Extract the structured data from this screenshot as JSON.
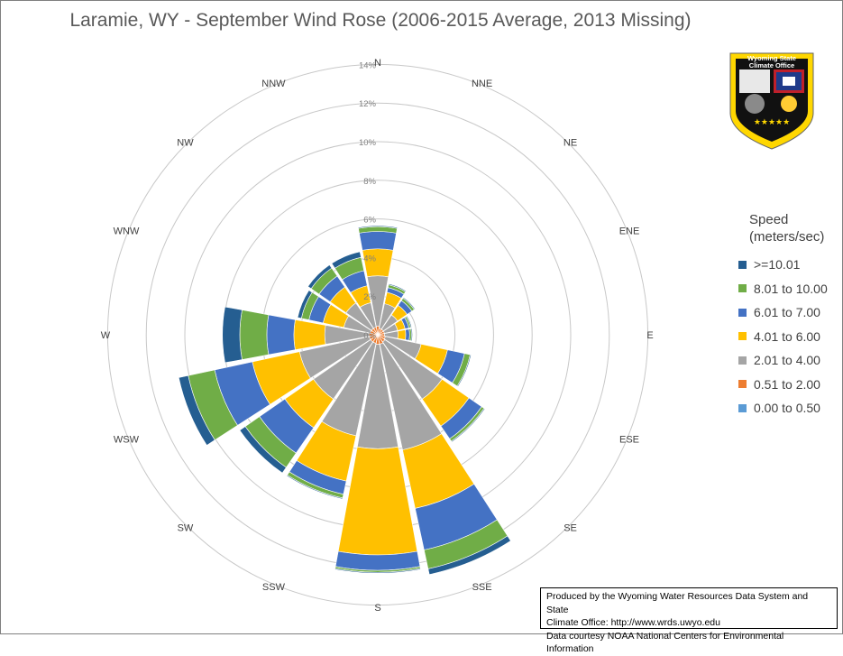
{
  "title": "Laramie, WY - September Wind Rose (2006-2015 Average, 2013 Missing)",
  "chart_data": {
    "type": "wind-rose",
    "title": "Laramie, WY - September Wind Rose (2006-2015 Average, 2013 Missing)",
    "directions": [
      "N",
      "NNE",
      "NE",
      "ENE",
      "E",
      "ESE",
      "SE",
      "SSE",
      "S",
      "SSW",
      "SW",
      "WSW",
      "W",
      "WNW",
      "NW",
      "NNW"
    ],
    "radial_ticks": [
      "0%",
      "2%",
      "4%",
      "6%",
      "8%",
      "10%",
      "12%",
      "14%"
    ],
    "rlim": [
      0,
      14
    ],
    "grid": true,
    "legend_position": "right",
    "legend_title": "Speed (meters/sec)",
    "series": [
      {
        "name": "0.00 to 0.50",
        "color": "#5b9bd5",
        "values": [
          0,
          0,
          0,
          0,
          0,
          0,
          0,
          0,
          0,
          0,
          0,
          0,
          0,
          0,
          0,
          0
        ]
      },
      {
        "name": "0.51 to 2.00",
        "color": "#ed7d31",
        "values": [
          0.45,
          0.35,
          0.35,
          0.35,
          0.35,
          0.4,
          0.45,
          0.5,
          0.5,
          0.45,
          0.45,
          0.45,
          0.45,
          0.4,
          0.4,
          0.4
        ]
      },
      {
        "name": "2.01 to 4.00",
        "color": "#a5a5a5",
        "values": [
          2.6,
          1.3,
          0.9,
          0.7,
          0.7,
          1.9,
          3.6,
          5.6,
          5.4,
          4.9,
          3.6,
          3.7,
          2.3,
          1.4,
          1.6,
          1.3
        ]
      },
      {
        "name": "4.01 to 6.00",
        "color": "#ffc000",
        "values": [
          1.4,
          0.6,
          0.6,
          0.4,
          0.4,
          1.4,
          1.7,
          3.1,
          5.5,
          2.4,
          1.8,
          2.5,
          1.6,
          1.1,
          1.0,
          0.9
        ]
      },
      {
        "name": "6.01 to 7.00",
        "color": "#4472c4",
        "values": [
          0.9,
          0.25,
          0.3,
          0.2,
          0.2,
          0.9,
          0.8,
          2.2,
          0.8,
          0.7,
          1.6,
          2.0,
          1.4,
          0.75,
          0.7,
          0.8
        ]
      },
      {
        "name": "8.01 to 10.00",
        "color": "#70ad47",
        "values": [
          0.25,
          0.15,
          0.15,
          0.1,
          0.1,
          0.3,
          0.15,
          1.0,
          0.1,
          0.2,
          0.9,
          1.4,
          1.4,
          0.4,
          0.5,
          0.7
        ]
      },
      {
        "name": ">=10.01",
        "color": "#255e91",
        "values": [
          0.05,
          0.05,
          0.05,
          0.05,
          0.05,
          0.05,
          0.05,
          0.3,
          0.05,
          0.05,
          0.35,
          0.5,
          0.9,
          0.2,
          0.2,
          0.3
        ]
      }
    ]
  },
  "legend": {
    "title_line1": "Speed",
    "title_line2": "(meters/sec)",
    "items": [
      {
        "label": ">=10.01",
        "color": "#255e91"
      },
      {
        "label": "8.01 to 10.00",
        "color": "#70ad47"
      },
      {
        "label": "6.01 to 7.00",
        "color": "#4472c4"
      },
      {
        "label": "4.01 to 6.00",
        "color": "#ffc000"
      },
      {
        "label": "2.01 to 4.00",
        "color": "#a5a5a5"
      },
      {
        "label": "0.51 to 2.00",
        "color": "#ed7d31"
      },
      {
        "label": "0.00 to 0.50",
        "color": "#5b9bd5"
      }
    ]
  },
  "credit": {
    "line1": "Produced by the Wyoming Water Resources Data System and State",
    "line2": "Climate Office: http://www.wrds.uwyo.edu",
    "line3": "Data courtesy NOAA National Centers for Environmental Information"
  },
  "logo": {
    "line1": "Wyoming State",
    "line2": "Climate Office",
    "colors": {
      "yellow": "#ffd700",
      "black": "#111111",
      "flag_blue": "#1f3a8a",
      "flag_red": "#c0202a"
    }
  }
}
